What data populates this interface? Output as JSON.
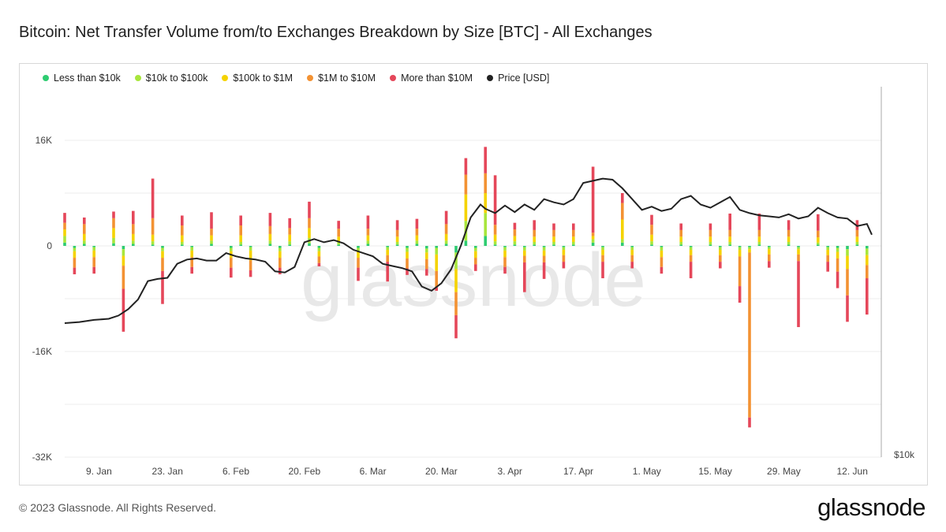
{
  "header": {
    "title": "Bitcoin: Net Transfer Volume from/to Exchanges Breakdown by Size [BTC] - All Exchanges"
  },
  "footer": {
    "copyright": "© 2023 Glassnode. All Rights Reserved.",
    "brand": "glassnode"
  },
  "watermark": "glassnode",
  "colors": {
    "lt10k": "#2ecc71",
    "10k100k": "#a8e63c",
    "100k1m": "#f5d300",
    "1m10m": "#f39233",
    "gt10m": "#e5475a",
    "price": "#222222"
  },
  "chart_data": {
    "type": "bar",
    "title": "Bitcoin: Net Transfer Volume from/to Exchanges Breakdown by Size [BTC] - All Exchanges",
    "stacked": true,
    "y_left": {
      "ticks": [
        "16K",
        "0",
        "-16K",
        "-32K"
      ],
      "range": [
        -32000,
        16000
      ]
    },
    "y_right": {
      "ticks": [
        "$10k"
      ],
      "range": [
        10000,
        35000
      ]
    },
    "x_ticks": [
      "9. Jan",
      "23. Jan",
      "6. Feb",
      "20. Feb",
      "6. Mar",
      "20. Mar",
      "3. Apr",
      "17. Apr",
      "1. May",
      "15. May",
      "29. May",
      "12. Jun"
    ],
    "x_range_days": [
      0,
      165
    ],
    "legend": [
      {
        "name": "Less than $10k",
        "color": "#2ecc71"
      },
      {
        "name": "$10k to $100k",
        "color": "#a8e63c"
      },
      {
        "name": "$100k to $1M",
        "color": "#f5d300"
      },
      {
        "name": "$1M to $10M",
        "color": "#f39233"
      },
      {
        "name": "More than $10M",
        "color": "#e5475a"
      },
      {
        "name": "Price [USD]",
        "color": "#222222"
      }
    ],
    "legend_placement": "top-left",
    "grid": true,
    "bars": [
      {
        "day": 0,
        "values": [
          500,
          1000,
          1000,
          1000,
          1500
        ]
      },
      {
        "day": 2,
        "values": [
          -300,
          -500,
          -1000,
          -1500,
          -1000
        ]
      },
      {
        "day": 4,
        "values": [
          300,
          500,
          1000,
          1500,
          1000
        ]
      },
      {
        "day": 6,
        "values": [
          -200,
          -500,
          -1000,
          -1500,
          -1000
        ]
      },
      {
        "day": 10,
        "values": [
          400,
          800,
          1500,
          1500,
          1000
        ]
      },
      {
        "day": 12,
        "values": [
          -500,
          -1000,
          -1500,
          -3500,
          -6500
        ]
      },
      {
        "day": 14,
        "values": [
          300,
          500,
          1000,
          1500,
          2000
        ]
      },
      {
        "day": 18,
        "values": [
          200,
          500,
          1000,
          2500,
          6000
        ]
      },
      {
        "day": 20,
        "values": [
          -300,
          -500,
          -1000,
          -2000,
          -5000
        ]
      },
      {
        "day": 24,
        "values": [
          200,
          400,
          1000,
          1500,
          1500
        ]
      },
      {
        "day": 26,
        "values": [
          -200,
          -500,
          -1000,
          -1500,
          -1000
        ]
      },
      {
        "day": 30,
        "values": [
          300,
          500,
          800,
          1000,
          2500
        ]
      },
      {
        "day": 34,
        "values": [
          -300,
          -500,
          -1000,
          -1500,
          -1500
        ]
      },
      {
        "day": 36,
        "values": [
          200,
          400,
          1000,
          1500,
          1500
        ]
      },
      {
        "day": 38,
        "values": [
          -200,
          -500,
          -1500,
          -1500,
          -1000
        ]
      },
      {
        "day": 42,
        "values": [
          300,
          500,
          1000,
          1200,
          2000
        ]
      },
      {
        "day": 44,
        "values": [
          -300,
          -500,
          -1000,
          -1500,
          -1000
        ]
      },
      {
        "day": 46,
        "values": [
          200,
          500,
          1000,
          1000,
          1500
        ]
      },
      {
        "day": 50,
        "values": [
          400,
          800,
          1500,
          1500,
          2500
        ]
      },
      {
        "day": 52,
        "values": [
          -300,
          -500,
          -800,
          -1000,
          -500
        ]
      },
      {
        "day": 56,
        "values": [
          200,
          400,
          800,
          1200,
          1200
        ]
      },
      {
        "day": 60,
        "values": [
          -300,
          -500,
          -1000,
          -1500,
          -2000
        ]
      },
      {
        "day": 62,
        "values": [
          300,
          500,
          800,
          1000,
          2000
        ]
      },
      {
        "day": 66,
        "values": [
          -200,
          -400,
          -800,
          -1000,
          -3000
        ]
      },
      {
        "day": 68,
        "values": [
          200,
          400,
          800,
          1000,
          1500
        ]
      },
      {
        "day": 70,
        "values": [
          -300,
          -600,
          -1000,
          -1500,
          -1000
        ]
      },
      {
        "day": 72,
        "values": [
          300,
          500,
          800,
          1000,
          1500
        ]
      },
      {
        "day": 74,
        "values": [
          -400,
          -600,
          -1000,
          -1500,
          -1000
        ]
      },
      {
        "day": 76,
        "values": [
          -300,
          -1000,
          -2500,
          -2500,
          -500
        ]
      },
      {
        "day": 78,
        "values": [
          300,
          500,
          1000,
          1500,
          2000
        ]
      },
      {
        "day": 80,
        "values": [
          -1000,
          -2500,
          -3500,
          -3500,
          -3500
        ]
      },
      {
        "day": 82,
        "values": [
          800,
          3000,
          4000,
          3000,
          2500
        ]
      },
      {
        "day": 84,
        "values": [
          -300,
          -500,
          -1000,
          -1000,
          -1000
        ]
      },
      {
        "day": 86,
        "values": [
          1500,
          3500,
          3000,
          3000,
          4000
        ]
      },
      {
        "day": 88,
        "values": [
          200,
          500,
          1000,
          1500,
          7500
        ]
      },
      {
        "day": 90,
        "values": [
          -200,
          -500,
          -1000,
          -1500,
          -1000
        ]
      },
      {
        "day": 92,
        "values": [
          200,
          500,
          800,
          1000,
          1000
        ]
      },
      {
        "day": 94,
        "values": [
          -200,
          -500,
          -800,
          -1000,
          -4500
        ]
      },
      {
        "day": 96,
        "values": [
          200,
          400,
          800,
          1000,
          1500
        ]
      },
      {
        "day": 98,
        "values": [
          -200,
          -500,
          -800,
          -1000,
          -2500
        ]
      },
      {
        "day": 100,
        "values": [
          200,
          400,
          800,
          1000,
          1000
        ]
      },
      {
        "day": 102,
        "values": [
          -200,
          -400,
          -800,
          -1000,
          -1000
        ]
      },
      {
        "day": 104,
        "values": [
          200,
          400,
          800,
          1000,
          1000
        ]
      },
      {
        "day": 108,
        "values": [
          500,
          500,
          500,
          500,
          10000
        ]
      },
      {
        "day": 110,
        "values": [
          -200,
          -400,
          -800,
          -1000,
          -2500
        ]
      },
      {
        "day": 114,
        "values": [
          500,
          500,
          3000,
          2500,
          1500
        ]
      },
      {
        "day": 116,
        "values": [
          -200,
          -400,
          -800,
          -1000,
          -1000
        ]
      },
      {
        "day": 120,
        "values": [
          200,
          500,
          1000,
          1500,
          1500
        ]
      },
      {
        "day": 122,
        "values": [
          -200,
          -500,
          -1000,
          -1500,
          -1000
        ]
      },
      {
        "day": 126,
        "values": [
          200,
          400,
          800,
          1000,
          1000
        ]
      },
      {
        "day": 128,
        "values": [
          -200,
          -400,
          -800,
          -1000,
          -2500
        ]
      },
      {
        "day": 132,
        "values": [
          200,
          400,
          800,
          1000,
          1000
        ]
      },
      {
        "day": 134,
        "values": [
          -200,
          -400,
          -800,
          -1000,
          -1000
        ]
      },
      {
        "day": 136,
        "values": [
          200,
          400,
          800,
          1000,
          2500
        ]
      },
      {
        "day": 138,
        "values": [
          -200,
          -400,
          -1000,
          -4500,
          -2500
        ]
      },
      {
        "day": 140,
        "values": [
          -200,
          -300,
          -500,
          -25000,
          -1500
        ]
      },
      {
        "day": 142,
        "values": [
          200,
          400,
          800,
          1000,
          2500
        ]
      },
      {
        "day": 144,
        "values": [
          -200,
          -300,
          -800,
          -1000,
          -1000
        ]
      },
      {
        "day": 148,
        "values": [
          200,
          400,
          800,
          1000,
          1500
        ]
      },
      {
        "day": 150,
        "values": [
          -200,
          -300,
          -800,
          -1000,
          -10000
        ]
      },
      {
        "day": 154,
        "values": [
          200,
          300,
          800,
          1000,
          2500
        ]
      },
      {
        "day": 156,
        "values": [
          -200,
          -400,
          -800,
          -1000,
          -1500
        ]
      },
      {
        "day": 158,
        "values": [
          -300,
          -600,
          -1000,
          -2000,
          -2500
        ]
      },
      {
        "day": 160,
        "values": [
          -500,
          -1000,
          -2000,
          -4000,
          -4000
        ]
      },
      {
        "day": 162,
        "values": [
          200,
          400,
          800,
          1000,
          1500
        ]
      },
      {
        "day": 164,
        "values": [
          -400,
          -1000,
          -1500,
          -2000,
          -5500
        ]
      }
    ],
    "price": {
      "name": "Price [USD]",
      "points": [
        [
          0,
          17000
        ],
        [
          3,
          17100
        ],
        [
          6,
          17300
        ],
        [
          9,
          17400
        ],
        [
          11,
          17700
        ],
        [
          13,
          18300
        ],
        [
          15,
          19200
        ],
        [
          17,
          20900
        ],
        [
          19,
          21100
        ],
        [
          21,
          21200
        ],
        [
          23,
          22500
        ],
        [
          25,
          22900
        ],
        [
          27,
          23000
        ],
        [
          29,
          22800
        ],
        [
          31,
          22800
        ],
        [
          33,
          23500
        ],
        [
          35,
          23200
        ],
        [
          37,
          23000
        ],
        [
          39,
          22900
        ],
        [
          41,
          22700
        ],
        [
          43,
          21800
        ],
        [
          45,
          21700
        ],
        [
          47,
          22200
        ],
        [
          49,
          24500
        ],
        [
          51,
          24800
        ],
        [
          53,
          24500
        ],
        [
          55,
          24700
        ],
        [
          57,
          24400
        ],
        [
          59,
          23800
        ],
        [
          61,
          23500
        ],
        [
          63,
          23200
        ],
        [
          65,
          22500
        ],
        [
          67,
          22300
        ],
        [
          69,
          22100
        ],
        [
          71,
          21800
        ],
        [
          73,
          20400
        ],
        [
          75,
          20000
        ],
        [
          77,
          20700
        ],
        [
          79,
          22000
        ],
        [
          81,
          24200
        ],
        [
          83,
          26800
        ],
        [
          85,
          28000
        ],
        [
          86,
          27600
        ],
        [
          88,
          27200
        ],
        [
          90,
          27900
        ],
        [
          92,
          27300
        ],
        [
          94,
          28000
        ],
        [
          96,
          27500
        ],
        [
          98,
          28500
        ],
        [
          100,
          28200
        ],
        [
          102,
          28000
        ],
        [
          104,
          28500
        ],
        [
          106,
          30000
        ],
        [
          108,
          30200
        ],
        [
          110,
          30400
        ],
        [
          112,
          30300
        ],
        [
          114,
          29500
        ],
        [
          116,
          28500
        ],
        [
          118,
          27500
        ],
        [
          120,
          27800
        ],
        [
          122,
          27400
        ],
        [
          124,
          27600
        ],
        [
          126,
          28500
        ],
        [
          128,
          28800
        ],
        [
          130,
          28000
        ],
        [
          132,
          27700
        ],
        [
          134,
          28200
        ],
        [
          136,
          28700
        ],
        [
          138,
          27500
        ],
        [
          140,
          27200
        ],
        [
          142,
          27000
        ],
        [
          144,
          26900
        ],
        [
          146,
          26800
        ],
        [
          148,
          27100
        ],
        [
          150,
          26700
        ],
        [
          152,
          26900
        ],
        [
          154,
          27700
        ],
        [
          156,
          27200
        ],
        [
          158,
          26800
        ],
        [
          160,
          26700
        ],
        [
          162,
          26000
        ],
        [
          164,
          26200
        ],
        [
          165,
          25200
        ]
      ]
    }
  }
}
